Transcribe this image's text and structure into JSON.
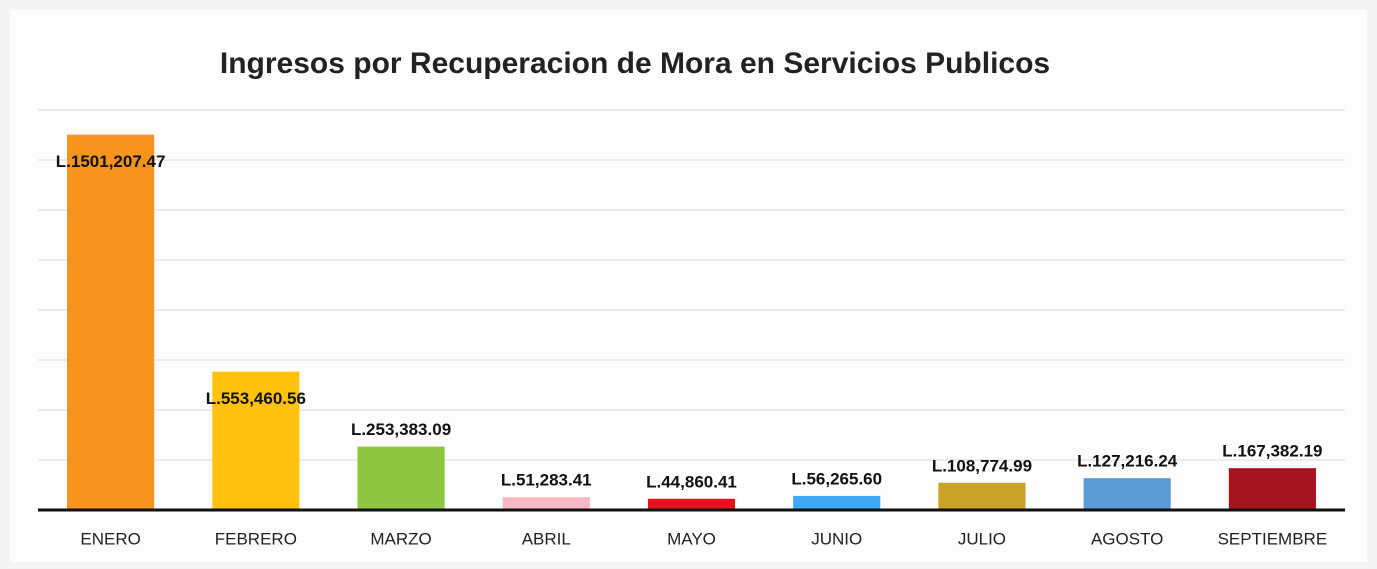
{
  "chart_data": {
    "type": "bar",
    "title": "Ingresos por Recuperacion de Mora en Servicios Publicos",
    "categories": [
      "ENERO",
      "FEBRERO",
      "MARZO",
      "ABRIL",
      "MAYO",
      "JUNIO",
      "JULIO",
      "AGOSTO",
      "SEPTIEMBRE"
    ],
    "values": [
      1501207.47,
      553460.56,
      253383.09,
      51283.41,
      44860.41,
      56265.6,
      108774.99,
      127216.24,
      167382.19
    ],
    "value_labels": [
      "L.1501,207.47",
      "L.553,460.56",
      "L.253,383.09",
      "L.51,283.41",
      "L.44,860.41",
      "L.56,265.60",
      "L.108,774.99",
      "L.127,216.24",
      "L.167,382.19"
    ],
    "colors": [
      "#f7941d",
      "#ffc20e",
      "#8dc63f",
      "#f9b7c4",
      "#e8101e",
      "#3fa9f5",
      "#c9a227",
      "#5b9bd5",
      "#a6121d"
    ],
    "ylim": [
      0,
      1600000
    ],
    "yticks": [
      0,
      200000,
      400000,
      600000,
      800000,
      1000000,
      1200000,
      1400000,
      1600000
    ],
    "grid": true
  }
}
